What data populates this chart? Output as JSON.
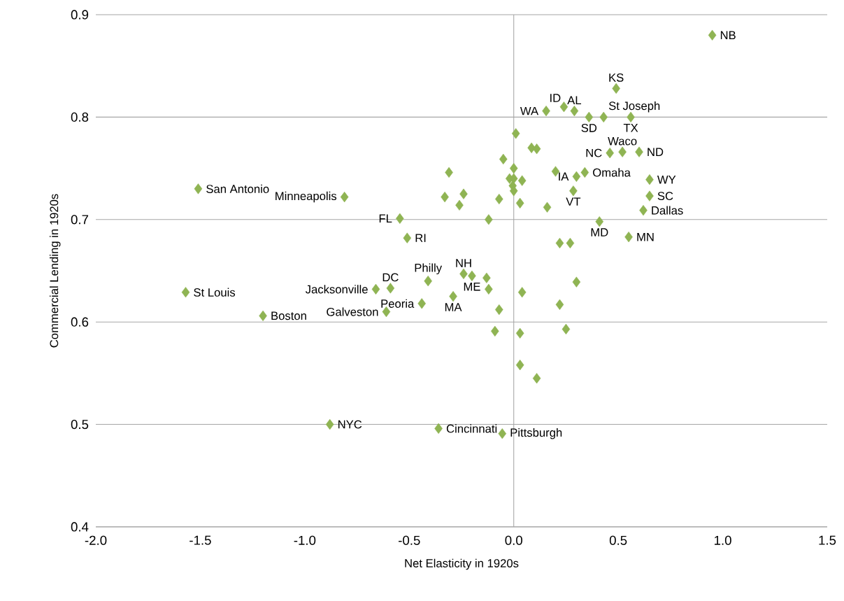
{
  "chart_data": {
    "type": "scatter",
    "xlabel": "Net Elasticity in 1920s",
    "ylabel": "Commercial Lending in 1920s",
    "xlim": [
      -2.0,
      1.5
    ],
    "ylim": [
      0.4,
      0.9
    ],
    "xticks": [
      {
        "value": -2.0,
        "label": "-2.0"
      },
      -1.5,
      {
        "value": -1.0,
        "label": "-1.0"
      },
      -0.5,
      {
        "value": 0.0,
        "label": "0.0"
      },
      0.5,
      {
        "value": 1.0,
        "label": "1.0"
      },
      1.5
    ],
    "yticks": [
      0.4,
      0.5,
      0.6,
      0.7,
      0.8,
      0.9
    ],
    "grid": "y",
    "marker": "diamond",
    "ref_lines": [
      {
        "axis": "x",
        "value": 0,
        "color": "#a6a6a6"
      }
    ],
    "series": [
      {
        "color": "#8fb453",
        "x": [
          0.95,
          0.49,
          0.24,
          0.155,
          0.29,
          0.43,
          0.36,
          0.56,
          0.52,
          0.46,
          0.6,
          0.34,
          0.3,
          0.285,
          0.65,
          0.65,
          0.62,
          0.41,
          0.55,
          -0.81,
          -0.545,
          -0.51,
          -0.24,
          -0.2,
          -0.41,
          -0.59,
          -0.66,
          -0.29,
          -0.44,
          -0.61,
          -1.51,
          -1.57,
          -1.2,
          -0.88,
          -0.36,
          -0.055,
          0.01,
          0.085,
          0.11,
          -0.05,
          0.2,
          0.0,
          -0.02,
          0.0,
          0.04,
          -0.005,
          0.0,
          -0.07,
          0.03,
          0.16,
          -0.12,
          0.22,
          0.27,
          -0.31,
          -0.33,
          -0.24,
          -0.26,
          -0.13,
          -0.12,
          -0.07,
          -0.09,
          0.04,
          0.3,
          0.22,
          0.25,
          0.03,
          0.03,
          0.11
        ],
        "values": [
          0.88,
          0.828,
          0.81,
          0.806,
          0.806,
          0.8,
          0.8,
          0.8,
          0.766,
          0.765,
          0.766,
          0.746,
          0.742,
          0.728,
          0.739,
          0.723,
          0.709,
          0.698,
          0.683,
          0.722,
          0.701,
          0.682,
          0.647,
          0.645,
          0.64,
          0.633,
          0.632,
          0.625,
          0.618,
          0.61,
          0.73,
          0.629,
          0.606,
          0.5,
          0.496,
          0.491,
          0.784,
          0.77,
          0.769,
          0.759,
          0.747,
          0.75,
          0.74,
          0.74,
          0.738,
          0.733,
          0.728,
          0.72,
          0.716,
          0.712,
          0.7,
          0.677,
          0.677,
          0.746,
          0.722,
          0.725,
          0.714,
          0.643,
          0.632,
          0.612,
          0.591,
          0.629,
          0.639,
          0.617,
          0.593,
          0.589,
          0.558,
          0.545
        ]
      }
    ],
    "annotations": [
      {
        "text": "NB",
        "x": 0.95,
        "y": 0.88
      },
      {
        "text": "KS",
        "x": 0.49,
        "y": 0.828
      },
      {
        "text": "ID",
        "x": 0.24,
        "y": 0.81
      },
      {
        "text": "WA",
        "x": 0.155,
        "y": 0.806
      },
      {
        "text": "AL",
        "x": 0.29,
        "y": 0.806
      },
      {
        "text": "St Joseph",
        "x": 0.43,
        "y": 0.8
      },
      {
        "text": "SD",
        "x": 0.36,
        "y": 0.8
      },
      {
        "text": "TX",
        "x": 0.56,
        "y": 0.8
      },
      {
        "text": "Waco",
        "x": 0.52,
        "y": 0.766
      },
      {
        "text": "NC",
        "x": 0.46,
        "y": 0.765
      },
      {
        "text": "ND",
        "x": 0.6,
        "y": 0.766
      },
      {
        "text": "Omaha",
        "x": 0.34,
        "y": 0.746
      },
      {
        "text": "IA",
        "x": 0.3,
        "y": 0.742
      },
      {
        "text": "VT",
        "x": 0.285,
        "y": 0.728
      },
      {
        "text": "WY",
        "x": 0.65,
        "y": 0.739
      },
      {
        "text": "SC",
        "x": 0.65,
        "y": 0.723
      },
      {
        "text": "Dallas",
        "x": 0.62,
        "y": 0.709
      },
      {
        "text": "MD",
        "x": 0.41,
        "y": 0.698
      },
      {
        "text": "MN",
        "x": 0.55,
        "y": 0.683
      },
      {
        "text": "Minneapolis",
        "x": -0.81,
        "y": 0.722
      },
      {
        "text": "FL",
        "x": -0.545,
        "y": 0.701
      },
      {
        "text": "RI",
        "x": -0.51,
        "y": 0.682
      },
      {
        "text": "NH",
        "x": -0.24,
        "y": 0.647
      },
      {
        "text": "ME",
        "x": -0.2,
        "y": 0.645
      },
      {
        "text": "Philly",
        "x": -0.41,
        "y": 0.64
      },
      {
        "text": "DC",
        "x": -0.59,
        "y": 0.633
      },
      {
        "text": "Jacksonville",
        "x": -0.66,
        "y": 0.632
      },
      {
        "text": "MA",
        "x": -0.29,
        "y": 0.625
      },
      {
        "text": "Peoria",
        "x": -0.44,
        "y": 0.618
      },
      {
        "text": "Galveston",
        "x": -0.61,
        "y": 0.61
      },
      {
        "text": "San Antonio",
        "x": -1.51,
        "y": 0.73
      },
      {
        "text": "St Louis",
        "x": -1.57,
        "y": 0.629
      },
      {
        "text": "Boston",
        "x": -1.2,
        "y": 0.606
      },
      {
        "text": "NYC",
        "x": -0.88,
        "y": 0.5
      },
      {
        "text": "Cincinnati",
        "x": -0.36,
        "y": 0.496
      },
      {
        "text": "Pittsburgh",
        "x": -0.055,
        "y": 0.491
      }
    ]
  }
}
